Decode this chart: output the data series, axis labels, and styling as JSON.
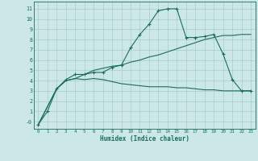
{
  "xlabel": "Humidex (Indice chaleur)",
  "xlim": [
    -0.5,
    23.5
  ],
  "ylim": [
    -0.7,
    11.7
  ],
  "xticks": [
    0,
    1,
    2,
    3,
    4,
    5,
    6,
    7,
    8,
    9,
    10,
    11,
    12,
    13,
    14,
    15,
    16,
    17,
    18,
    19,
    20,
    21,
    22,
    23
  ],
  "yticks": [
    0,
    1,
    2,
    3,
    4,
    5,
    6,
    7,
    8,
    9,
    10,
    11
  ],
  "bg_color": "#cce8e6",
  "grid_color": "#aaccca",
  "line_color": "#1a6b60",
  "line1_x": [
    0,
    1,
    2,
    3,
    4,
    5,
    6,
    7,
    8,
    9,
    10,
    11,
    12,
    13,
    14,
    15,
    16,
    17,
    18,
    19,
    20,
    21,
    22,
    23
  ],
  "line1_y": [
    -0.3,
    1.0,
    3.2,
    4.1,
    4.6,
    4.6,
    4.8,
    4.8,
    5.3,
    5.5,
    7.2,
    8.5,
    9.5,
    10.8,
    11.0,
    11.0,
    8.2,
    8.2,
    8.3,
    8.5,
    6.6,
    4.1,
    3.0,
    3.0
  ],
  "line2_x": [
    0,
    2,
    3,
    4,
    5,
    6,
    7,
    8,
    9,
    10,
    11,
    12,
    13,
    14,
    15,
    16,
    17,
    18,
    19,
    20,
    21,
    22,
    23
  ],
  "line2_y": [
    -0.3,
    3.2,
    4.0,
    4.2,
    4.6,
    5.0,
    5.2,
    5.4,
    5.5,
    5.8,
    6.0,
    6.3,
    6.5,
    6.8,
    7.1,
    7.4,
    7.7,
    8.0,
    8.2,
    8.4,
    8.4,
    8.5,
    8.5
  ],
  "line3_x": [
    0,
    2,
    3,
    4,
    5,
    6,
    7,
    8,
    9,
    10,
    11,
    12,
    13,
    14,
    15,
    16,
    17,
    18,
    19,
    20,
    21,
    22,
    23
  ],
  "line3_y": [
    -0.3,
    3.2,
    4.0,
    4.2,
    4.1,
    4.2,
    4.1,
    3.9,
    3.7,
    3.6,
    3.5,
    3.4,
    3.4,
    3.4,
    3.3,
    3.3,
    3.2,
    3.1,
    3.1,
    3.0,
    3.0,
    3.0,
    3.0
  ]
}
